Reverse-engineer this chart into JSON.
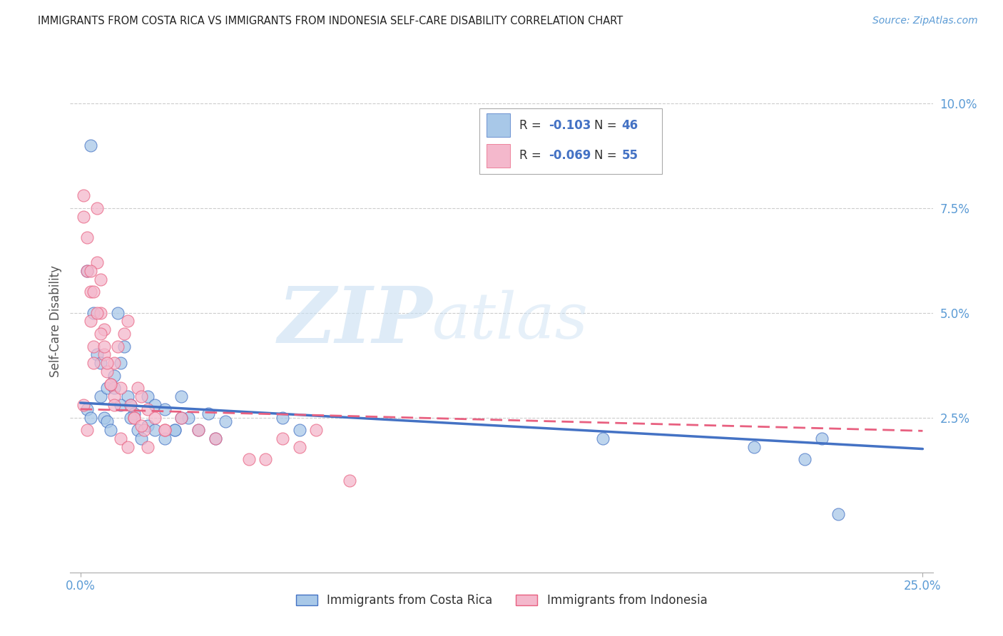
{
  "title": "IMMIGRANTS FROM COSTA RICA VS IMMIGRANTS FROM INDONESIA SELF-CARE DISABILITY CORRELATION CHART",
  "source": "Source: ZipAtlas.com",
  "ylabel": "Self-Care Disability",
  "legend_label1": "Immigrants from Costa Rica",
  "legend_label2": "Immigrants from Indonesia",
  "legend_R1_val": "-0.103",
  "legend_N1_val": "46",
  "legend_R2_val": "-0.069",
  "legend_N2_val": "55",
  "color_blue": "#A8C8E8",
  "color_pink": "#F4B8CC",
  "color_blue_dark": "#4472C4",
  "color_pink_dark": "#E86080",
  "watermark_zip": "ZIP",
  "watermark_atlas": "atlas",
  "xlim_min": 0.0,
  "xlim_max": 0.25,
  "ylim_min": -0.012,
  "ylim_max": 0.108,
  "ytick_vals": [
    0.025,
    0.05,
    0.075,
    0.1
  ],
  "ytick_labels": [
    "2.5%",
    "5.0%",
    "7.5%",
    "10.0%"
  ],
  "cr_line_x0": 0.0,
  "cr_line_y0": 0.0285,
  "cr_line_x1": 0.25,
  "cr_line_y1": 0.0175,
  "id_line_x0": 0.0,
  "id_line_y0": 0.027,
  "id_line_x1": 0.25,
  "id_line_y1": 0.0218,
  "costa_rica_x": [
    0.003,
    0.002,
    0.003,
    0.005,
    0.006,
    0.007,
    0.008,
    0.009,
    0.01,
    0.011,
    0.012,
    0.013,
    0.014,
    0.015,
    0.016,
    0.017,
    0.02,
    0.022,
    0.025,
    0.028,
    0.03,
    0.032,
    0.035,
    0.038,
    0.04,
    0.043,
    0.002,
    0.004,
    0.006,
    0.008,
    0.01,
    0.012,
    0.015,
    0.018,
    0.02,
    0.022,
    0.025,
    0.028,
    0.03,
    0.06,
    0.065,
    0.155,
    0.2,
    0.215,
    0.22,
    0.225
  ],
  "costa_rica_y": [
    0.09,
    0.027,
    0.025,
    0.04,
    0.03,
    0.025,
    0.024,
    0.022,
    0.035,
    0.05,
    0.038,
    0.042,
    0.03,
    0.028,
    0.026,
    0.022,
    0.03,
    0.028,
    0.027,
    0.022,
    0.03,
    0.025,
    0.022,
    0.026,
    0.02,
    0.024,
    0.06,
    0.05,
    0.038,
    0.032,
    0.032,
    0.028,
    0.025,
    0.02,
    0.023,
    0.022,
    0.02,
    0.022,
    0.025,
    0.025,
    0.022,
    0.02,
    0.018,
    0.015,
    0.02,
    0.002
  ],
  "indonesia_x": [
    0.001,
    0.001,
    0.002,
    0.002,
    0.003,
    0.003,
    0.004,
    0.004,
    0.005,
    0.005,
    0.006,
    0.006,
    0.007,
    0.007,
    0.008,
    0.009,
    0.01,
    0.01,
    0.011,
    0.012,
    0.013,
    0.014,
    0.015,
    0.016,
    0.017,
    0.018,
    0.019,
    0.02,
    0.022,
    0.025,
    0.001,
    0.002,
    0.003,
    0.004,
    0.005,
    0.006,
    0.007,
    0.008,
    0.009,
    0.01,
    0.012,
    0.014,
    0.016,
    0.018,
    0.02,
    0.025,
    0.03,
    0.035,
    0.04,
    0.05,
    0.055,
    0.06,
    0.065,
    0.07,
    0.08
  ],
  "indonesia_y": [
    0.078,
    0.073,
    0.068,
    0.06,
    0.055,
    0.048,
    0.042,
    0.038,
    0.075,
    0.062,
    0.058,
    0.05,
    0.046,
    0.04,
    0.036,
    0.033,
    0.03,
    0.038,
    0.042,
    0.032,
    0.045,
    0.048,
    0.028,
    0.025,
    0.032,
    0.03,
    0.022,
    0.027,
    0.025,
    0.022,
    0.028,
    0.022,
    0.06,
    0.055,
    0.05,
    0.045,
    0.042,
    0.038,
    0.033,
    0.028,
    0.02,
    0.018,
    0.025,
    0.023,
    0.018,
    0.022,
    0.025,
    0.022,
    0.02,
    0.015,
    0.015,
    0.02,
    0.018,
    0.022,
    0.01
  ]
}
